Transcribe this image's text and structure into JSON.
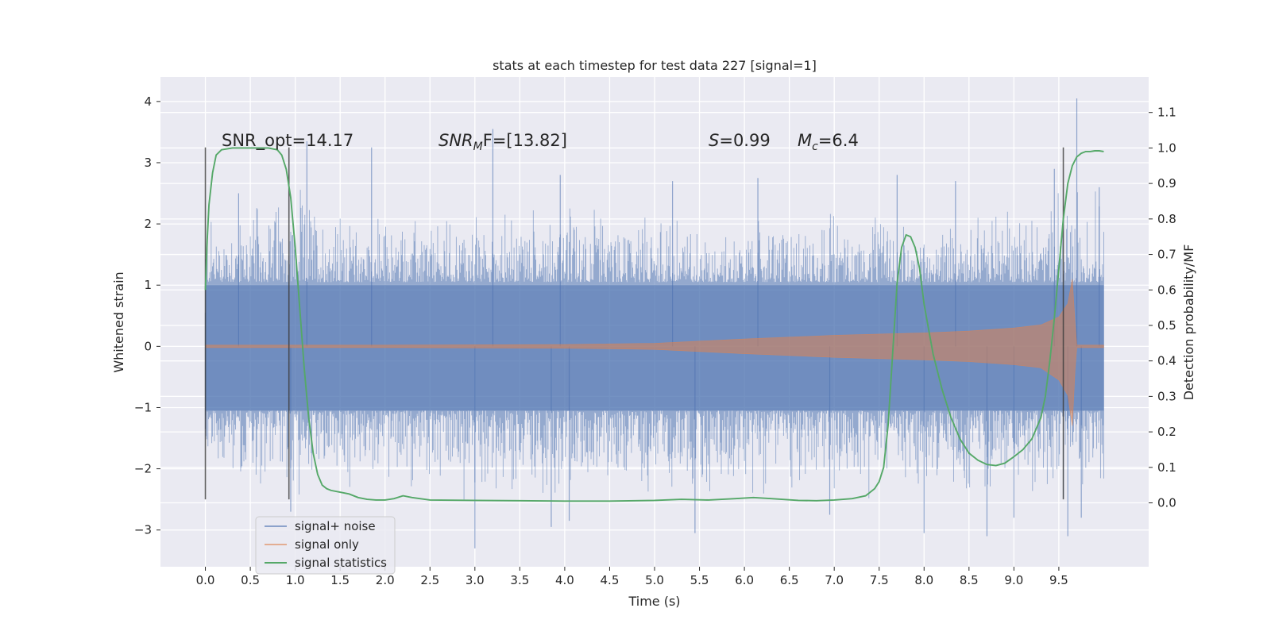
{
  "chart_data": {
    "type": "line",
    "title": "stats at each timestep for test data 227 [signal=1]",
    "xlabel": "Time (s)",
    "ylabel": "Whitened strain",
    "y2label": "Detection probability/MF",
    "xlim": [
      -0.5,
      10.5
    ],
    "ylim": [
      -3.6,
      4.4
    ],
    "y2lim": [
      -0.18,
      1.2
    ],
    "xticks": [
      0.0,
      0.5,
      1.0,
      1.5,
      2.0,
      2.5,
      3.0,
      3.5,
      4.0,
      4.5,
      5.0,
      5.5,
      6.0,
      6.5,
      7.0,
      7.5,
      8.0,
      8.5,
      9.0,
      9.5
    ],
    "xtick_labels": [
      "0.0",
      "0.5",
      "1.0",
      "1.5",
      "2.0",
      "2.5",
      "3.0",
      "3.5",
      "4.0",
      "4.5",
      "5.0",
      "5.5",
      "6.0",
      "6.5",
      "7.0",
      "7.5",
      "8.0",
      "8.5",
      "9.0",
      "9.5"
    ],
    "yticks": [
      -3,
      -2,
      -1,
      0,
      1,
      2,
      3,
      4
    ],
    "ytick_labels": [
      "−3",
      "−2",
      "−1",
      "0",
      "1",
      "2",
      "3",
      "4"
    ],
    "y2ticks": [
      0.0,
      0.1,
      0.2,
      0.3,
      0.4,
      0.5,
      0.6,
      0.7,
      0.8,
      0.9,
      1.0,
      1.1
    ],
    "y2tick_labels": [
      "0.0",
      "0.1",
      "0.2",
      "0.3",
      "0.4",
      "0.5",
      "0.6",
      "0.7",
      "0.8",
      "0.9",
      "1.0",
      "1.1"
    ],
    "grid": true,
    "legend_position": "lower-left",
    "annotations": {
      "snr_opt": "SNR_opt=14.17",
      "snr_mf_main": "SNR",
      "snr_mf_sub": "M",
      "snr_mf_rest": "F=[13.82]",
      "s_main": "S",
      "s_rest": "=0.99",
      "mc_main": "M",
      "mc_sub": "c",
      "mc_rest": "=6.4"
    },
    "vertical_markers": [
      {
        "x": 0.0,
        "y_range": [
          -2.5,
          3.25
        ]
      },
      {
        "x": 0.93,
        "y_range": [
          -2.5,
          3.25
        ]
      },
      {
        "x": 9.55,
        "y_range": [
          -2.5,
          3.25
        ]
      }
    ],
    "series": [
      {
        "name": "signal+ noise",
        "color": "#4c72b0",
        "opacity": 0.5,
        "x_range": [
          0.0,
          10.0
        ],
        "envelope": {
          "x": [
            0.0,
            0.5,
            1.0,
            1.5,
            2.0,
            2.5,
            3.0,
            3.5,
            4.0,
            4.5,
            5.0,
            5.5,
            6.0,
            6.5,
            7.0,
            7.5,
            8.0,
            8.5,
            9.0,
            9.5,
            10.0
          ],
          "upper": [
            2.2,
            2.5,
            2.7,
            2.3,
            2.2,
            2.1,
            2.3,
            2.4,
            2.5,
            2.2,
            2.2,
            2.1,
            2.0,
            2.2,
            2.4,
            2.2,
            2.0,
            2.3,
            2.4,
            2.6,
            2.6
          ],
          "lower": [
            -2.1,
            -2.4,
            -2.6,
            -2.5,
            -2.4,
            -2.5,
            -2.7,
            -2.6,
            -2.6,
            -2.5,
            -2.5,
            -2.6,
            -2.5,
            -2.4,
            -2.6,
            -2.5,
            -2.6,
            -2.7,
            -2.6,
            -2.6,
            -2.4
          ]
        },
        "peaks": [
          {
            "x": 0.0,
            "y": 0.55
          },
          {
            "x": 0.37,
            "y": 2.5
          },
          {
            "x": 1.13,
            "y": 3.35
          },
          {
            "x": 1.85,
            "y": 3.25
          },
          {
            "x": 3.2,
            "y": 3.55
          },
          {
            "x": 3.95,
            "y": 2.8
          },
          {
            "x": 5.2,
            "y": 2.7
          },
          {
            "x": 6.15,
            "y": 2.75
          },
          {
            "x": 7.7,
            "y": 2.8
          },
          {
            "x": 8.35,
            "y": 2.7
          },
          {
            "x": 9.45,
            "y": 2.9
          },
          {
            "x": 9.7,
            "y": 4.05
          },
          {
            "x": 9.95,
            "y": 2.6
          },
          {
            "x": 0.0,
            "y": -1.35
          },
          {
            "x": 0.95,
            "y": -2.7
          },
          {
            "x": 3.0,
            "y": -3.3
          },
          {
            "x": 3.85,
            "y": -2.95
          },
          {
            "x": 4.05,
            "y": -2.85
          },
          {
            "x": 5.45,
            "y": -3.05
          },
          {
            "x": 6.95,
            "y": -2.75
          },
          {
            "x": 8.0,
            "y": -3.05
          },
          {
            "x": 8.7,
            "y": -3.1
          },
          {
            "x": 9.0,
            "y": -2.8
          },
          {
            "x": 9.6,
            "y": -3.1
          },
          {
            "x": 9.75,
            "y": -2.8
          }
        ]
      },
      {
        "name": "signal only",
        "color": "#dd8452",
        "opacity": 0.6,
        "description_note": "",
        "envelope": {
          "x": [
            0.0,
            2.0,
            4.0,
            5.0,
            6.0,
            7.0,
            7.5,
            8.0,
            8.5,
            9.0,
            9.3,
            9.5,
            9.6,
            9.65,
            9.68,
            9.7,
            10.0
          ],
          "upper": [
            0.02,
            0.02,
            0.03,
            0.05,
            0.12,
            0.18,
            0.2,
            0.22,
            0.25,
            0.3,
            0.35,
            0.48,
            0.7,
            1.1,
            0.4,
            0.02,
            0.02
          ],
          "lower": [
            -0.02,
            -0.02,
            -0.03,
            -0.05,
            -0.12,
            -0.18,
            -0.2,
            -0.22,
            -0.25,
            -0.3,
            -0.35,
            -0.55,
            -0.8,
            -1.3,
            -0.4,
            -0.02,
            -0.02
          ]
        }
      },
      {
        "name": "signal statistics",
        "color": "#55a868",
        "axis": "right",
        "x": [
          0.0,
          0.02,
          0.04,
          0.08,
          0.12,
          0.18,
          0.3,
          0.5,
          0.7,
          0.8,
          0.85,
          0.9,
          0.95,
          1.0,
          1.05,
          1.1,
          1.15,
          1.2,
          1.25,
          1.3,
          1.35,
          1.4,
          1.5,
          1.6,
          1.7,
          1.8,
          1.9,
          2.0,
          2.1,
          2.2,
          2.3,
          2.5,
          3.0,
          3.5,
          4.0,
          4.5,
          5.0,
          5.3,
          5.6,
          5.9,
          6.1,
          6.3,
          6.6,
          6.8,
          7.0,
          7.2,
          7.35,
          7.45,
          7.5,
          7.55,
          7.6,
          7.65,
          7.7,
          7.75,
          7.8,
          7.85,
          7.9,
          7.95,
          8.0,
          8.1,
          8.2,
          8.3,
          8.4,
          8.5,
          8.6,
          8.7,
          8.8,
          8.9,
          9.0,
          9.1,
          9.2,
          9.3,
          9.35,
          9.4,
          9.45,
          9.5,
          9.55,
          9.6,
          9.65,
          9.7,
          9.75,
          9.8,
          9.85,
          9.9,
          9.95,
          10.0
        ],
        "y": [
          0.6,
          0.74,
          0.84,
          0.93,
          0.98,
          0.995,
          1.0,
          1.0,
          1.0,
          0.995,
          0.98,
          0.94,
          0.86,
          0.72,
          0.55,
          0.38,
          0.24,
          0.14,
          0.08,
          0.05,
          0.04,
          0.035,
          0.03,
          0.025,
          0.015,
          0.01,
          0.008,
          0.008,
          0.012,
          0.02,
          0.015,
          0.008,
          0.007,
          0.006,
          0.005,
          0.005,
          0.007,
          0.01,
          0.008,
          0.012,
          0.015,
          0.012,
          0.007,
          0.006,
          0.008,
          0.012,
          0.02,
          0.04,
          0.06,
          0.1,
          0.22,
          0.42,
          0.62,
          0.72,
          0.755,
          0.75,
          0.72,
          0.66,
          0.56,
          0.42,
          0.32,
          0.24,
          0.18,
          0.14,
          0.12,
          0.108,
          0.105,
          0.112,
          0.13,
          0.15,
          0.18,
          0.24,
          0.3,
          0.4,
          0.52,
          0.66,
          0.8,
          0.9,
          0.95,
          0.975,
          0.985,
          0.99,
          0.99,
          0.992,
          0.992,
          0.99
        ]
      }
    ]
  }
}
